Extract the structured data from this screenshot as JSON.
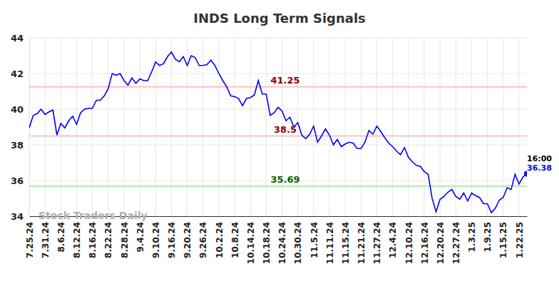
{
  "chart_data": {
    "type": "line",
    "title": "INDS Long Term Signals",
    "watermark": "Stock Traders Daily",
    "grid": true,
    "categories": [
      "7.25.24",
      null,
      null,
      null,
      "7.31.24",
      null,
      null,
      null,
      "8.6.24",
      null,
      null,
      null,
      "8.12.24",
      null,
      null,
      null,
      "8.16.24",
      null,
      null,
      null,
      "8.22.24",
      null,
      null,
      null,
      "8.28.24",
      null,
      null,
      null,
      "9.4.24",
      null,
      null,
      null,
      "9.10.24",
      null,
      null,
      null,
      "9.16.24",
      null,
      null,
      null,
      "9.20.24",
      null,
      null,
      null,
      "9.26.24",
      null,
      null,
      null,
      "10.2.24",
      null,
      null,
      null,
      "10.8.24",
      null,
      null,
      null,
      "10.14.24",
      null,
      null,
      null,
      "10.18.24",
      null,
      null,
      null,
      "10.24.24",
      null,
      null,
      null,
      "10.30.24",
      null,
      null,
      null,
      "11.5.24",
      null,
      null,
      null,
      "11.11.24",
      null,
      null,
      null,
      "11.15.24",
      null,
      null,
      null,
      "11.21.24",
      null,
      null,
      null,
      "11.27.24",
      null,
      null,
      null,
      "12.4.24",
      null,
      null,
      null,
      "12.10.24",
      null,
      null,
      null,
      "12.16.24",
      null,
      null,
      null,
      "12.20.24",
      null,
      null,
      null,
      "12.27.24",
      null,
      null,
      null,
      "1.3.25",
      null,
      null,
      null,
      "1.9.25",
      null,
      null,
      null,
      "1.15.25",
      null,
      null,
      null,
      "1.22.25",
      null,
      null
    ],
    "series": [
      {
        "name": "INDS",
        "color": "#0000ff",
        "values": [
          38.95,
          39.65,
          39.75,
          40.0,
          39.7,
          39.85,
          39.95,
          38.55,
          39.2,
          38.95,
          39.35,
          39.6,
          39.15,
          39.8,
          40.0,
          40.05,
          40.05,
          40.5,
          40.5,
          40.75,
          41.15,
          42.0,
          41.9,
          42.0,
          41.6,
          41.35,
          41.75,
          41.45,
          41.7,
          41.6,
          41.6,
          42.1,
          42.65,
          42.45,
          42.55,
          42.95,
          43.2,
          42.8,
          42.65,
          42.95,
          42.45,
          43.0,
          42.9,
          42.45,
          42.45,
          42.5,
          42.75,
          42.45,
          42.0,
          41.6,
          41.25,
          40.75,
          40.7,
          40.6,
          40.2,
          40.6,
          40.65,
          40.8,
          41.6,
          40.85,
          40.85,
          39.65,
          39.8,
          40.1,
          39.9,
          39.35,
          39.55,
          39.0,
          39.25,
          38.55,
          38.35,
          38.6,
          39.05,
          38.15,
          38.5,
          38.9,
          38.55,
          38.0,
          38.3,
          37.9,
          38.05,
          38.15,
          38.1,
          37.8,
          37.8,
          38.15,
          38.8,
          38.6,
          39.05,
          38.75,
          38.4,
          38.1,
          37.9,
          37.65,
          37.45,
          37.85,
          37.3,
          37.05,
          36.85,
          36.8,
          36.5,
          36.35,
          35.0,
          34.25,
          34.95,
          35.1,
          35.35,
          35.5,
          35.1,
          34.95,
          35.3,
          34.85,
          35.3,
          35.15,
          35.05,
          34.7,
          34.7,
          34.2,
          34.45,
          34.9,
          35.05,
          35.6,
          35.5,
          36.35,
          35.8,
          36.2,
          36.38
        ]
      }
    ],
    "ylim": [
      34,
      44
    ],
    "yticks": [
      34,
      36,
      38,
      40,
      42,
      44
    ],
    "reference_lines": [
      {
        "value": 41.25,
        "color": "#ffb3b3",
        "label_color": "#8b0000"
      },
      {
        "value": 38.5,
        "color": "#ffb3b3",
        "label_color": "#8b0000"
      },
      {
        "value": 35.69,
        "color": "#90ee90",
        "label_color": "#006400"
      }
    ],
    "last_point": {
      "time_label": "16:00",
      "label_color": "#0000ff",
      "marker": "circle"
    }
  }
}
